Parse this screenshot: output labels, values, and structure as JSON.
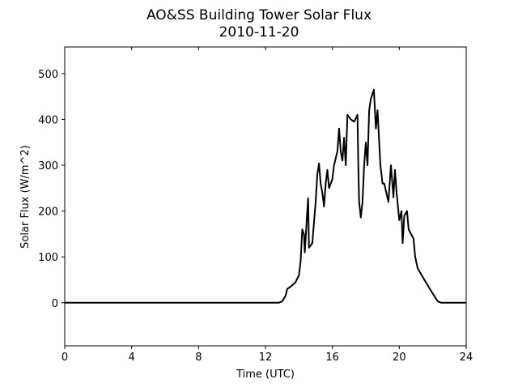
{
  "chart_data": {
    "type": "line",
    "title": "AO&SS Building Tower Solar Flux",
    "subtitle": "2010-11-20",
    "xlabel": "Time (UTC)",
    "ylabel": "Solar Flux (W/m^2)",
    "xlim": [
      0,
      24
    ],
    "xticks": [
      0,
      4,
      8,
      12,
      16,
      20,
      24
    ],
    "ylim": [
      -94,
      558
    ],
    "yticks": [
      0,
      100,
      200,
      300,
      400,
      500
    ],
    "x": [
      0,
      12.8,
      13.0,
      13.2,
      13.3,
      13.5,
      13.8,
      14.0,
      14.1,
      14.2,
      14.3,
      14.35,
      14.5,
      14.55,
      14.6,
      14.8,
      15.0,
      15.1,
      15.2,
      15.3,
      15.4,
      15.5,
      15.6,
      15.7,
      15.8,
      16.0,
      16.1,
      16.3,
      16.4,
      16.5,
      16.6,
      16.7,
      16.8,
      16.9,
      17.1,
      17.3,
      17.5,
      17.55,
      17.6,
      17.7,
      17.8,
      17.9,
      18.0,
      18.1,
      18.2,
      18.3,
      18.48,
      18.6,
      18.7,
      18.87,
      19.0,
      19.1,
      19.35,
      19.5,
      19.65,
      19.74,
      19.84,
      20.0,
      20.13,
      20.2,
      20.3,
      20.46,
      20.56,
      20.7,
      20.85,
      20.95,
      21.1,
      21.5,
      22.0,
      22.3,
      22.5,
      24
    ],
    "series": [
      {
        "name": "Solar Flux",
        "color": "#000000",
        "values": [
          0,
          0,
          3,
          15,
          30,
          35,
          45,
          60,
          90,
          160,
          150,
          110,
          200,
          228,
          120,
          130,
          220,
          280,
          304,
          260,
          240,
          210,
          260,
          290,
          250,
          270,
          300,
          330,
          380,
          330,
          310,
          360,
          300,
          410,
          400,
          395,
          410,
          300,
          220,
          186,
          220,
          300,
          350,
          300,
          420,
          445,
          465,
          380,
          420,
          300,
          260,
          260,
          220,
          300,
          230,
          290,
          240,
          180,
          200,
          130,
          190,
          200,
          160,
          150,
          140,
          100,
          75,
          50,
          20,
          3,
          0,
          0
        ]
      }
    ]
  }
}
